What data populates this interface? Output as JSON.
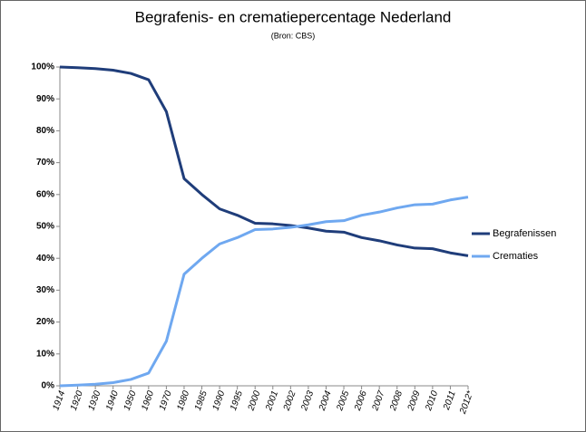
{
  "chart_data": {
    "type": "line",
    "title": "Begrafenis- en crematiepercentage Nederland",
    "subtitle": "(Bron: CBS)",
    "categories": [
      "1914",
      "1920",
      "1930",
      "1940",
      "1950",
      "1960",
      "1970",
      "1980",
      "1985",
      "1990",
      "1995",
      "2000",
      "2001",
      "2002",
      "2003",
      "2004",
      "2005",
      "2006",
      "2007",
      "2008",
      "2009",
      "2010",
      "2011",
      "2012*"
    ],
    "series": [
      {
        "name": "Begrafenissen",
        "color": "#1f3d7a",
        "values": [
          100,
          99.8,
          99.5,
          99,
          98,
          96,
          86,
          65,
          60,
          55.5,
          53.5,
          51,
          50.8,
          50.3,
          49.5,
          48.5,
          48.2,
          46.5,
          45.5,
          44.2,
          43.2,
          43,
          41.7,
          40.8
        ]
      },
      {
        "name": "Crematies",
        "color": "#6fa8f0",
        "values": [
          0,
          0.2,
          0.5,
          1,
          2,
          4,
          14,
          35,
          40,
          44.5,
          46.5,
          49,
          49.2,
          49.7,
          50.5,
          51.5,
          51.8,
          53.5,
          54.5,
          55.8,
          56.8,
          57,
          58.3,
          59.2
        ]
      }
    ],
    "ylim": [
      0,
      100
    ],
    "yticks": [
      {
        "value": 0,
        "label": "0%"
      },
      {
        "value": 10,
        "label": "10%"
      },
      {
        "value": 20,
        "label": "20%"
      },
      {
        "value": 30,
        "label": "30%"
      },
      {
        "value": 40,
        "label": "40%"
      },
      {
        "value": 50,
        "label": "50%"
      },
      {
        "value": 60,
        "label": "60%"
      },
      {
        "value": 70,
        "label": "70%"
      },
      {
        "value": 80,
        "label": "80%"
      },
      {
        "value": 90,
        "label": "90%"
      },
      {
        "value": 100,
        "label": "100%"
      }
    ],
    "legend": "right"
  }
}
